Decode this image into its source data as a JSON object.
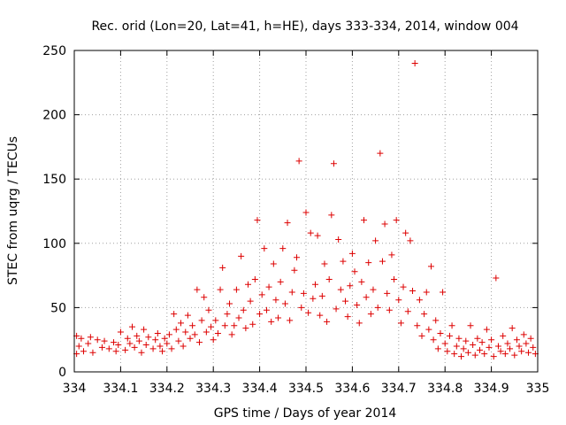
{
  "chart_data": {
    "type": "scatter",
    "title": "Rec. orid (Lon=20, Lat=41, h=HE), days 333-334, 2014, window 004",
    "xlabel": "GPS time / Days of year 2014",
    "ylabel": "STEC from uqrg / TECUs",
    "xlim": [
      334,
      335
    ],
    "ylim": [
      0,
      250
    ],
    "xticks": [
      334,
      334.1,
      334.2,
      334.3,
      334.4,
      334.5,
      334.6,
      334.7,
      334.8,
      334.9,
      335
    ],
    "xtick_labels": [
      "334",
      "334.1",
      "334.2",
      "334.3",
      "334.4",
      "334.5",
      "334.6",
      "334.7",
      "334.8",
      "334.9",
      "335"
    ],
    "yticks": [
      0,
      50,
      100,
      150,
      200,
      250
    ],
    "ytick_labels": [
      "0",
      "50",
      "100",
      "150",
      "200",
      "250"
    ],
    "grid": true,
    "marker": "+",
    "marker_color": "#dd0000",
    "series": [
      {
        "points": [
          [
            334.005,
            28
          ],
          [
            334.005,
            14
          ],
          [
            334.01,
            20
          ],
          [
            334.015,
            26
          ],
          [
            334.02,
            16
          ],
          [
            334.03,
            22
          ],
          [
            334.035,
            27
          ],
          [
            334.04,
            15
          ],
          [
            334.05,
            25
          ],
          [
            334.06,
            19
          ],
          [
            334.065,
            24
          ],
          [
            334.075,
            18
          ],
          [
            334.085,
            23
          ],
          [
            334.09,
            16
          ],
          [
            334.095,
            21
          ],
          [
            334.1,
            31
          ],
          [
            334.11,
            17
          ],
          [
            334.115,
            26
          ],
          [
            334.12,
            22
          ],
          [
            334.125,
            35
          ],
          [
            334.13,
            19
          ],
          [
            334.135,
            28
          ],
          [
            334.14,
            24
          ],
          [
            334.145,
            15
          ],
          [
            334.15,
            33
          ],
          [
            334.155,
            21
          ],
          [
            334.16,
            27
          ],
          [
            334.17,
            18
          ],
          [
            334.175,
            25
          ],
          [
            334.18,
            30
          ],
          [
            334.185,
            20
          ],
          [
            334.19,
            16
          ],
          [
            334.195,
            26
          ],
          [
            334.2,
            22
          ],
          [
            334.205,
            29
          ],
          [
            334.21,
            18
          ],
          [
            334.215,
            45
          ],
          [
            334.22,
            33
          ],
          [
            334.225,
            24
          ],
          [
            334.23,
            38
          ],
          [
            334.235,
            20
          ],
          [
            334.24,
            31
          ],
          [
            334.245,
            44
          ],
          [
            334.25,
            26
          ],
          [
            334.255,
            36
          ],
          [
            334.26,
            29
          ],
          [
            334.265,
            64
          ],
          [
            334.27,
            23
          ],
          [
            334.275,
            40
          ],
          [
            334.28,
            58
          ],
          [
            334.285,
            31
          ],
          [
            334.29,
            48
          ],
          [
            334.295,
            35
          ],
          [
            334.3,
            25
          ],
          [
            334.305,
            40
          ],
          [
            334.31,
            30
          ],
          [
            334.315,
            64
          ],
          [
            334.32,
            81
          ],
          [
            334.325,
            36
          ],
          [
            334.33,
            45
          ],
          [
            334.335,
            53
          ],
          [
            334.34,
            29
          ],
          [
            334.345,
            36
          ],
          [
            334.35,
            64
          ],
          [
            334.355,
            42
          ],
          [
            334.36,
            90
          ],
          [
            334.365,
            48
          ],
          [
            334.37,
            34
          ],
          [
            334.375,
            68
          ],
          [
            334.38,
            55
          ],
          [
            334.385,
            37
          ],
          [
            334.39,
            72
          ],
          [
            334.395,
            118
          ],
          [
            334.4,
            45
          ],
          [
            334.405,
            60
          ],
          [
            334.41,
            96
          ],
          [
            334.415,
            48
          ],
          [
            334.42,
            66
          ],
          [
            334.425,
            39
          ],
          [
            334.43,
            84
          ],
          [
            334.435,
            56
          ],
          [
            334.44,
            42
          ],
          [
            334.445,
            70
          ],
          [
            334.45,
            96
          ],
          [
            334.455,
            53
          ],
          [
            334.46,
            116
          ],
          [
            334.465,
            40
          ],
          [
            334.47,
            62
          ],
          [
            334.475,
            79
          ],
          [
            334.48,
            89
          ],
          [
            334.485,
            164
          ],
          [
            334.49,
            50
          ],
          [
            334.495,
            61
          ],
          [
            334.5,
            124
          ],
          [
            334.505,
            46
          ],
          [
            334.51,
            108
          ],
          [
            334.515,
            57
          ],
          [
            334.52,
            68
          ],
          [
            334.525,
            106
          ],
          [
            334.53,
            44
          ],
          [
            334.535,
            59
          ],
          [
            334.54,
            84
          ],
          [
            334.545,
            39
          ],
          [
            334.55,
            72
          ],
          [
            334.555,
            122
          ],
          [
            334.56,
            162
          ],
          [
            334.565,
            49
          ],
          [
            334.57,
            103
          ],
          [
            334.575,
            64
          ],
          [
            334.58,
            86
          ],
          [
            334.585,
            55
          ],
          [
            334.59,
            43
          ],
          [
            334.595,
            67
          ],
          [
            334.6,
            92
          ],
          [
            334.605,
            78
          ],
          [
            334.61,
            52
          ],
          [
            334.615,
            38
          ],
          [
            334.62,
            70
          ],
          [
            334.625,
            118
          ],
          [
            334.63,
            58
          ],
          [
            334.635,
            85
          ],
          [
            334.64,
            45
          ],
          [
            334.645,
            64
          ],
          [
            334.65,
            102
          ],
          [
            334.655,
            50
          ],
          [
            334.66,
            170
          ],
          [
            334.665,
            86
          ],
          [
            334.67,
            115
          ],
          [
            334.675,
            61
          ],
          [
            334.68,
            48
          ],
          [
            334.685,
            91
          ],
          [
            334.69,
            72
          ],
          [
            334.695,
            118
          ],
          [
            334.7,
            56
          ],
          [
            334.705,
            38
          ],
          [
            334.71,
            66
          ],
          [
            334.715,
            108
          ],
          [
            334.72,
            47
          ],
          [
            334.725,
            102
          ],
          [
            334.73,
            63
          ],
          [
            334.735,
            240
          ],
          [
            334.74,
            36
          ],
          [
            334.745,
            56
          ],
          [
            334.75,
            28
          ],
          [
            334.755,
            45
          ],
          [
            334.76,
            62
          ],
          [
            334.765,
            33
          ],
          [
            334.77,
            82
          ],
          [
            334.775,
            25
          ],
          [
            334.78,
            40
          ],
          [
            334.785,
            18
          ],
          [
            334.79,
            30
          ],
          [
            334.795,
            62
          ],
          [
            334.8,
            22
          ],
          [
            334.805,
            16
          ],
          [
            334.81,
            28
          ],
          [
            334.815,
            36
          ],
          [
            334.82,
            14
          ],
          [
            334.825,
            20
          ],
          [
            334.83,
            26
          ],
          [
            334.835,
            12
          ],
          [
            334.84,
            18
          ],
          [
            334.845,
            24
          ],
          [
            334.85,
            15
          ],
          [
            334.855,
            36
          ],
          [
            334.86,
            21
          ],
          [
            334.865,
            13
          ],
          [
            334.87,
            26
          ],
          [
            334.875,
            17
          ],
          [
            334.88,
            23
          ],
          [
            334.885,
            14
          ],
          [
            334.89,
            33
          ],
          [
            334.895,
            19
          ],
          [
            334.9,
            25
          ],
          [
            334.905,
            12
          ],
          [
            334.91,
            73
          ],
          [
            334.915,
            20
          ],
          [
            334.92,
            16
          ],
          [
            334.925,
            28
          ],
          [
            334.93,
            14
          ],
          [
            334.935,
            22
          ],
          [
            334.94,
            18
          ],
          [
            334.945,
            34
          ],
          [
            334.95,
            13
          ],
          [
            334.955,
            25
          ],
          [
            334.96,
            20
          ],
          [
            334.965,
            16
          ],
          [
            334.97,
            29
          ],
          [
            334.975,
            22
          ],
          [
            334.98,
            15
          ],
          [
            334.985,
            26
          ],
          [
            334.99,
            19
          ],
          [
            334.995,
            14
          ]
        ]
      }
    ]
  }
}
